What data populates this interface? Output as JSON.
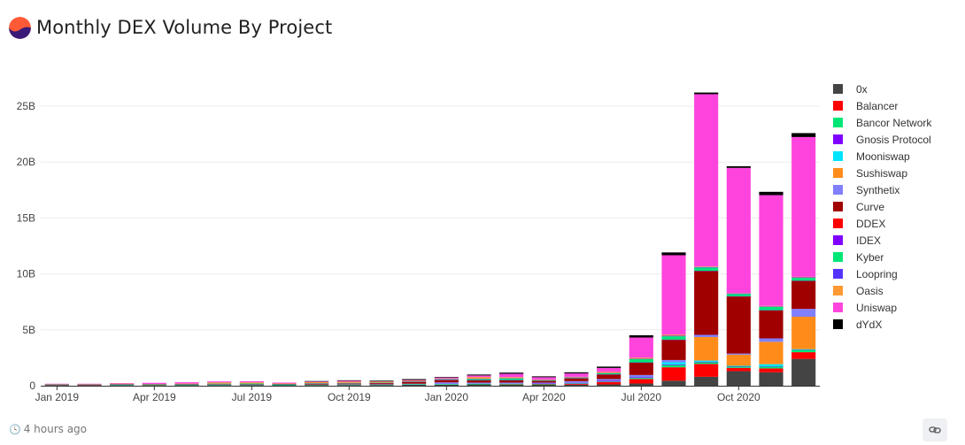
{
  "header": {
    "title": "Monthly DEX Volume By Project",
    "logo_colors": [
      "#ff5a36",
      "#3a1a78"
    ]
  },
  "footer": {
    "timestamp": "4 hours ago",
    "clock_icon": "clock-icon",
    "link_icon": "link-icon"
  },
  "chart_data": {
    "type": "bar",
    "stacked": true,
    "title": "Monthly DEX Volume By Project",
    "xlabel": "",
    "ylabel": "",
    "ylim": [
      0,
      27
    ],
    "y_unit": "B",
    "y_ticks": [
      "0",
      "5B",
      "10B",
      "15B",
      "20B",
      "25B"
    ],
    "grid": true,
    "legend_position": "right",
    "categories": [
      "2019-01",
      "2019-02",
      "2019-03",
      "2019-04",
      "2019-05",
      "2019-06",
      "2019-07",
      "2019-08",
      "2019-09",
      "2019-10",
      "2019-11",
      "2019-12",
      "2020-01",
      "2020-02",
      "2020-03",
      "2020-04",
      "2020-05",
      "2020-06",
      "2020-07",
      "2020-08",
      "2020-09",
      "2020-10",
      "2020-11",
      "2020-12"
    ],
    "x_tick_labels": [
      {
        "index": 0,
        "label": "Jan 2019"
      },
      {
        "index": 3,
        "label": "Apr 2019"
      },
      {
        "index": 6,
        "label": "Jul 2019"
      },
      {
        "index": 9,
        "label": "Oct 2019"
      },
      {
        "index": 12,
        "label": "Jan 2020"
      },
      {
        "index": 15,
        "label": "Apr 2020"
      },
      {
        "index": 18,
        "label": "Jul 2020"
      },
      {
        "index": 21,
        "label": "Oct 2020"
      }
    ],
    "series": [
      {
        "name": "0x",
        "color": "#444444",
        "values": [
          0.02,
          0.02,
          0.05,
          0.02,
          0.03,
          0.05,
          0.06,
          0.04,
          0.05,
          0.06,
          0.06,
          0.08,
          0.1,
          0.12,
          0.1,
          0.08,
          0.1,
          0.12,
          0.2,
          0.45,
          0.8,
          1.3,
          1.2,
          2.4
        ]
      },
      {
        "name": "Balancer",
        "color": "#ff0000",
        "values": [
          0,
          0,
          0,
          0,
          0,
          0,
          0,
          0,
          0,
          0,
          0,
          0,
          0,
          0,
          0.02,
          0.03,
          0.06,
          0.2,
          0.4,
          1.2,
          1.15,
          0.3,
          0.35,
          0.6
        ]
      },
      {
        "name": "Bancor Network",
        "color": "#00e676",
        "values": [
          0.03,
          0.02,
          0.05,
          0.04,
          0.04,
          0.05,
          0.05,
          0.04,
          0.04,
          0.04,
          0.04,
          0.05,
          0.05,
          0.06,
          0.06,
          0.05,
          0.05,
          0.05,
          0.1,
          0.2,
          0.15,
          0.1,
          0.15,
          0.2
        ]
      },
      {
        "name": "Gnosis Protocol",
        "color": "#8000ff",
        "values": [
          0,
          0,
          0,
          0,
          0,
          0,
          0,
          0,
          0,
          0,
          0,
          0,
          0,
          0,
          0,
          0.02,
          0.05,
          0.08,
          0.06,
          0.05,
          0.05,
          0.03,
          0.03,
          0.02
        ]
      },
      {
        "name": "Mooniswap",
        "color": "#00e5ff",
        "values": [
          0,
          0,
          0,
          0,
          0,
          0,
          0,
          0,
          0,
          0,
          0,
          0,
          0,
          0,
          0,
          0,
          0,
          0,
          0,
          0.2,
          0.1,
          0.05,
          0.2,
          0.05
        ]
      },
      {
        "name": "Sushiswap",
        "color": "#ff8c1a",
        "values": [
          0,
          0,
          0,
          0,
          0,
          0,
          0,
          0,
          0,
          0,
          0,
          0,
          0,
          0,
          0,
          0,
          0,
          0,
          0,
          0,
          2.1,
          1.0,
          2.0,
          2.9
        ]
      },
      {
        "name": "Synthetix",
        "color": "#8080ff",
        "values": [
          0,
          0,
          0,
          0,
          0,
          0,
          0,
          0,
          0.02,
          0.03,
          0.03,
          0.05,
          0.15,
          0.1,
          0.1,
          0.1,
          0.15,
          0.15,
          0.2,
          0.2,
          0.2,
          0.1,
          0.3,
          0.7
        ]
      },
      {
        "name": "Curve",
        "color": "#a00000",
        "values": [
          0,
          0,
          0,
          0,
          0,
          0,
          0,
          0,
          0.04,
          0.05,
          0.08,
          0.15,
          0.2,
          0.2,
          0.2,
          0.15,
          0.25,
          0.4,
          1.1,
          1.8,
          5.7,
          5.1,
          2.5,
          2.5
        ]
      },
      {
        "name": "DDEX",
        "color": "#ff0000",
        "values": [
          0.02,
          0.03,
          0.02,
          0.02,
          0.02,
          0.02,
          0.02,
          0.01,
          0.01,
          0.01,
          0.01,
          0.01,
          0.01,
          0,
          0,
          0,
          0,
          0,
          0,
          0,
          0,
          0,
          0,
          0
        ]
      },
      {
        "name": "IDEX",
        "color": "#8000ff",
        "values": [
          0.02,
          0.02,
          0.02,
          0.02,
          0.02,
          0.02,
          0.02,
          0.02,
          0.02,
          0.02,
          0.02,
          0.02,
          0.02,
          0.02,
          0.02,
          0.01,
          0.02,
          0.02,
          0.02,
          0.02,
          0.02,
          0.02,
          0.02,
          0.02
        ]
      },
      {
        "name": "Kyber",
        "color": "#00e676",
        "values": [
          0.02,
          0.02,
          0.02,
          0.03,
          0.03,
          0.05,
          0.05,
          0.04,
          0.04,
          0.05,
          0.04,
          0.04,
          0.05,
          0.1,
          0.15,
          0.05,
          0.05,
          0.1,
          0.3,
          0.3,
          0.3,
          0.2,
          0.3,
          0.25
        ]
      },
      {
        "name": "Loopring",
        "color": "#5533ff",
        "values": [
          0,
          0,
          0,
          0,
          0,
          0,
          0,
          0,
          0,
          0,
          0,
          0,
          0.03,
          0.02,
          0.02,
          0.02,
          0.02,
          0.02,
          0.03,
          0.05,
          0.05,
          0.05,
          0.04,
          0.05
        ]
      },
      {
        "name": "Oasis",
        "color": "#ff9933",
        "values": [
          0.02,
          0.02,
          0.02,
          0.03,
          0.05,
          0.1,
          0.1,
          0.05,
          0.1,
          0.1,
          0.08,
          0.05,
          0.05,
          0.15,
          0.1,
          0.05,
          0.05,
          0.1,
          0.1,
          0.1,
          0.05,
          0.03,
          0.05,
          0.05
        ]
      },
      {
        "name": "Uniswap",
        "color": "#ff44dd",
        "values": [
          0.01,
          0.01,
          0.02,
          0.1,
          0.12,
          0.1,
          0.1,
          0.08,
          0.05,
          0.08,
          0.03,
          0.06,
          0.08,
          0.15,
          0.3,
          0.2,
          0.3,
          0.35,
          1.8,
          7.1,
          15.4,
          11.2,
          9.9,
          12.5
        ]
      },
      {
        "name": "dYdX",
        "color": "#000000",
        "values": [
          0,
          0,
          0,
          0,
          0,
          0,
          0,
          0,
          0.02,
          0.03,
          0.06,
          0.08,
          0.05,
          0.08,
          0.1,
          0.08,
          0.1,
          0.12,
          0.2,
          0.25,
          0.15,
          0.15,
          0.3,
          0.35
        ]
      }
    ]
  }
}
